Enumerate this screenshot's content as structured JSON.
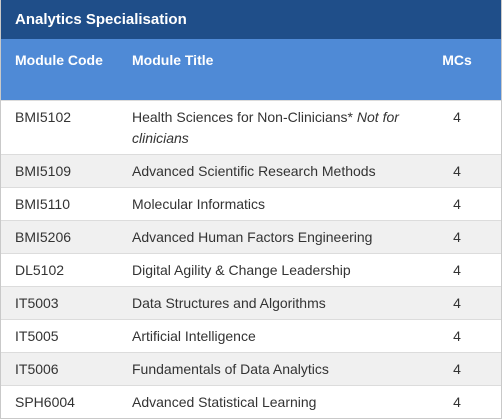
{
  "section_title": "Analytics Specialisation",
  "columns": {
    "code": "Module Code",
    "title": "Module Title",
    "mcs": "MCs"
  },
  "rows": [
    {
      "code": "BMI5102",
      "title": "Health Sciences for Non-Clinicians*",
      "note": "Not for clinicians",
      "mcs": "4"
    },
    {
      "code": "BMI5109",
      "title": "Advanced Scientific Research Methods",
      "note": "",
      "mcs": "4"
    },
    {
      "code": "BMI5110",
      "title": "Molecular Informatics",
      "note": "",
      "mcs": "4"
    },
    {
      "code": "BMI5206",
      "title": "Advanced Human Factors Engineering",
      "note": "",
      "mcs": "4"
    },
    {
      "code": "DL5102",
      "title": "Digital Agility & Change Leadership",
      "note": "",
      "mcs": "4"
    },
    {
      "code": "IT5003",
      "title": "Data Structures and Algorithms",
      "note": "",
      "mcs": "4"
    },
    {
      "code": "IT5005",
      "title": "Artificial Intelligence",
      "note": "",
      "mcs": "4"
    },
    {
      "code": "IT5006",
      "title": "Fundamentals of Data Analytics",
      "note": "",
      "mcs": "4"
    },
    {
      "code": "SPH6004",
      "title": "Advanced Statistical Learning",
      "note": "",
      "mcs": "4"
    }
  ]
}
